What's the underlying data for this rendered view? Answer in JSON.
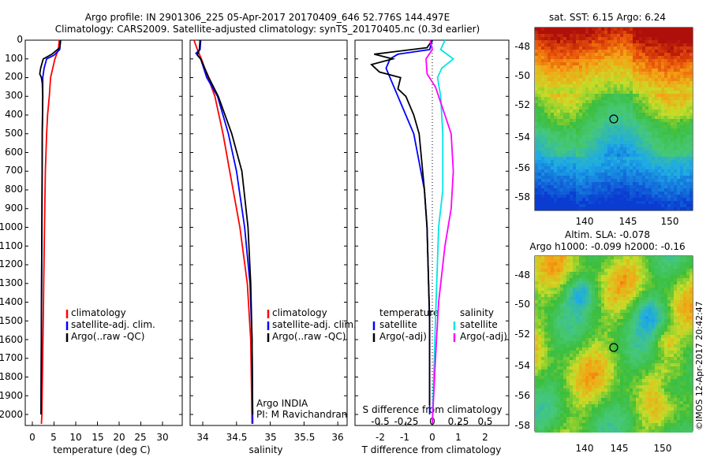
{
  "header": {
    "line1": "Argo profile: IN 2901306_225 05-Apr-2017 20170409_646 52.776S 144.497E",
    "line2": "Climatology: CARS2009. Satellite-adjusted climatology: synTS_20170405.nc (0.3d earlier)"
  },
  "colors": {
    "climatology": "#ff0000",
    "satellite": "#0000ff",
    "argo": "#000000",
    "sal_satellite": "#00e5e5",
    "sal_argo": "#ff00ff"
  },
  "chart_data": [
    {
      "type": "line",
      "xlabel": "temperature (deg C)",
      "ylim": [
        2050,
        0
      ],
      "xlim": [
        -1,
        31
      ],
      "x_ticks": [
        "0",
        "5",
        "10",
        "15",
        "20",
        "25",
        "30"
      ],
      "y_ticks": [
        "0",
        "100",
        "200",
        "300",
        "400",
        "500",
        "600",
        "700",
        "800",
        "900",
        "1000",
        "1100",
        "1200",
        "1300",
        "1400",
        "1500",
        "1600",
        "1700",
        "1800",
        "1900",
        "2000"
      ],
      "legend": [
        "climatology",
        "satellite-adj. clim.",
        "Argo(..raw -QC)"
      ],
      "series": [
        {
          "name": "climatology",
          "depth": [
            0,
            50,
            100,
            200,
            300,
            400,
            500,
            700,
            1000,
            1500,
            2000,
            2050
          ],
          "values": [
            6.2,
            6.0,
            5.2,
            4.2,
            3.9,
            3.5,
            3.3,
            3.0,
            2.8,
            2.5,
            2.2,
            2.1
          ]
        },
        {
          "name": "satellite-adj. clim.",
          "depth": [
            0,
            50,
            80,
            100,
            150,
            200,
            300,
            500,
            1000,
            1500,
            2000
          ],
          "values": [
            6.5,
            6.3,
            5.0,
            3.3,
            2.7,
            2.4,
            2.4,
            2.3,
            2.2,
            2.1,
            2.0
          ]
        },
        {
          "name": "Argo(..raw -QC)",
          "depth": [
            0,
            40,
            75,
            100,
            150,
            180,
            200,
            230,
            300,
            500,
            1000,
            1500,
            2000
          ],
          "values": [
            6.5,
            6.3,
            4.5,
            2.5,
            1.9,
            1.7,
            2.1,
            2.3,
            2.4,
            2.3,
            2.2,
            2.1,
            2.0
          ]
        }
      ]
    },
    {
      "type": "line",
      "xlabel": "salinity",
      "ylim": [
        2050,
        0
      ],
      "xlim": [
        33.6,
        36.1
      ],
      "x_ticks": [
        "34",
        "34.5",
        "35",
        "35.5",
        "36"
      ],
      "legend": [
        "climatology",
        "satellite-adj. clim.",
        "Argo(..raw -QC)"
      ],
      "annotations": [
        "Argo INDIA",
        "PI: M Ravichandran"
      ],
      "series": [
        {
          "name": "climatology",
          "depth": [
            0,
            50,
            100,
            200,
            300,
            500,
            700,
            1000,
            1300,
            1600,
            2050
          ],
          "values": [
            33.87,
            33.92,
            33.98,
            34.08,
            34.18,
            34.3,
            34.4,
            34.55,
            34.66,
            34.71,
            34.73
          ]
        },
        {
          "name": "satellite-adj. clim.",
          "depth": [
            0,
            50,
            70,
            100,
            200,
            300,
            500,
            700,
            1000,
            1300,
            1600,
            2050
          ],
          "values": [
            33.97,
            33.96,
            33.9,
            33.97,
            34.06,
            34.22,
            34.38,
            34.5,
            34.62,
            34.7,
            34.73,
            34.74
          ]
        },
        {
          "name": "Argo(..raw -QC)",
          "depth": [
            0,
            50,
            80,
            100,
            200,
            300,
            500,
            700,
            1000,
            1300,
            1600,
            2000
          ],
          "values": [
            33.96,
            33.95,
            33.92,
            33.97,
            34.09,
            34.23,
            34.43,
            34.58,
            34.67,
            34.71,
            34.73,
            34.74
          ]
        }
      ]
    },
    {
      "type": "line",
      "xlabel": "T difference from climatology",
      "top_xlabel": "S difference from climatology",
      "ylim": [
        2050,
        0
      ],
      "xlim": [
        -2.5,
        3.0
      ],
      "x_ticks": [
        "-2",
        "-1",
        "0",
        "1",
        "2"
      ],
      "top_x_ticks": [
        "-0.5",
        "-0.25",
        "0",
        "0.25",
        "0.5"
      ],
      "legend_titles": [
        "temperature",
        "salinity"
      ],
      "legend": [
        "satellite",
        "Argo(-adj)",
        "satellite",
        "Argo(-adj)"
      ],
      "series": [
        {
          "name": "satellite",
          "depth": [
            0,
            50,
            75,
            100,
            150,
            200,
            300,
            500,
            800,
            1000,
            1500,
            2000
          ],
          "values": [
            0.0,
            -0.1,
            -1.3,
            -1.6,
            -1.75,
            -1.6,
            -1.3,
            -0.7,
            -0.3,
            -0.2,
            -0.1,
            -0.1
          ]
        },
        {
          "name": "Argo(-adj)",
          "depth": [
            0,
            40,
            75,
            100,
            130,
            170,
            200,
            260,
            300,
            400,
            500,
            800,
            1000,
            1500,
            1950
          ],
          "values": [
            0.0,
            -0.2,
            -2.2,
            -1.5,
            -2.3,
            -2.0,
            -1.2,
            -1.3,
            -1.0,
            -0.7,
            -0.5,
            -0.3,
            -0.2,
            -0.1,
            -0.1
          ]
        },
        {
          "name": "satellite",
          "depth": [
            0,
            50,
            100,
            150,
            200,
            300,
            500,
            800,
            1000,
            1500,
            2050
          ],
          "values": [
            0.12,
            0.08,
            0.2,
            0.09,
            0.05,
            0.08,
            0.1,
            0.1,
            0.06,
            0.03,
            0.0
          ]
        },
        {
          "name": "Argo(-adj)",
          "depth": [
            0,
            50,
            100,
            180,
            250,
            400,
            500,
            700,
            900,
            1100,
            1400,
            1700,
            2050
          ],
          "values": [
            -0.02,
            0.0,
            -0.06,
            -0.05,
            0.03,
            0.12,
            0.18,
            0.2,
            0.18,
            0.12,
            0.06,
            0.03,
            0.0
          ]
        }
      ]
    },
    {
      "type": "heatmap",
      "title": "sat. SST: 6.15 Argo: 6.24",
      "x_ticks": [
        "140",
        "145",
        "150"
      ],
      "y_ticks": [
        "-48",
        "-50",
        "-52",
        "-54",
        "-56",
        "-58"
      ]
    },
    {
      "type": "heatmap",
      "title_line1": "Altim. SLA: -0.078",
      "title_line2": "Argo h1000: -0.099 h2000: -0.16",
      "x_ticks": [
        "140",
        "145",
        "150"
      ],
      "y_ticks": [
        "-48",
        "-50",
        "-52",
        "-54",
        "-56",
        "-58"
      ]
    }
  ],
  "credit": "©IMOS 12-Apr-2017 20:42:47"
}
